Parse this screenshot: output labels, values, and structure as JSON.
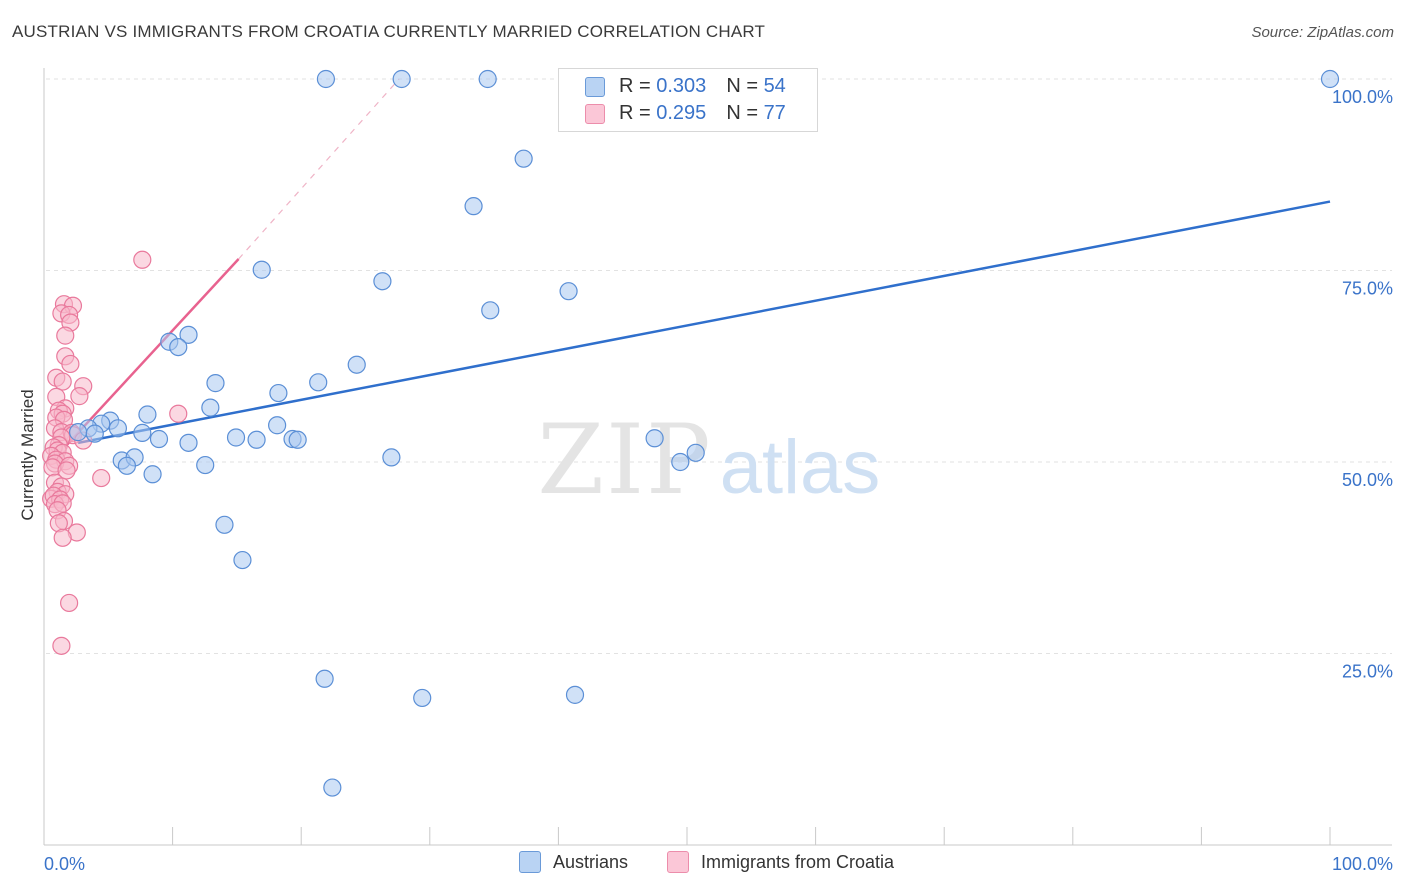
{
  "header": {
    "title": "AUSTRIAN VS IMMIGRANTS FROM CROATIA CURRENTLY MARRIED CORRELATION CHART",
    "source": "Source: ZipAtlas.com"
  },
  "legend": {
    "r_label": "R =",
    "n_label": "N =",
    "series": [
      {
        "name": "Austrians",
        "r": "0.303",
        "n": "54"
      },
      {
        "name": "Immigrants from Croatia",
        "r": "0.295",
        "n": "77"
      }
    ]
  },
  "watermark": {
    "part1": "ZIP",
    "part2": "atlas"
  },
  "colors": {
    "blue_fill": "#a9c8f0",
    "blue_stroke": "#5b8fd6",
    "blue_line": "#2f6fcc",
    "pink_fill": "#f7b8cb",
    "pink_stroke": "#e9799c",
    "pink_line": "#e8628f",
    "tick_label": "#3a73c9"
  },
  "chart_data": {
    "type": "scatter",
    "title": "AUSTRIAN VS IMMIGRANTS FROM CROATIA CURRENTLY MARRIED CORRELATION CHART",
    "xlabel": "",
    "ylabel": "Currently Married",
    "xlim": [
      0,
      100
    ],
    "ylim": [
      0,
      100
    ],
    "x_tick_labels": [
      "0.0%",
      "100.0%"
    ],
    "y_ticks": [
      25,
      50,
      75,
      100
    ],
    "y_tick_labels": [
      "25.0%",
      "50.0%",
      "75.0%",
      "100.0%"
    ],
    "grid": true,
    "series": [
      {
        "name": "Austrians",
        "r": 0.303,
        "n": 54,
        "trend": {
          "x0": 2.5,
          "y0": 52.5,
          "x1": 100,
          "y1": 84.0
        },
        "points": [
          [
            21.8,
            100
          ],
          [
            27.7,
            100
          ],
          [
            34.4,
            100
          ],
          [
            100,
            100
          ],
          [
            37.2,
            89.6
          ],
          [
            33.3,
            83.4
          ],
          [
            16.8,
            75.1
          ],
          [
            26.2,
            73.6
          ],
          [
            40.7,
            72.3
          ],
          [
            34.6,
            69.8
          ],
          [
            11.1,
            66.6
          ],
          [
            9.6,
            65.7
          ],
          [
            10.3,
            65
          ],
          [
            13.2,
            60.3
          ],
          [
            21.2,
            60.4
          ],
          [
            24.2,
            62.7
          ],
          [
            18.1,
            59
          ],
          [
            12.8,
            57.1
          ],
          [
            7.9,
            56.2
          ],
          [
            5.0,
            55.4
          ],
          [
            4.3,
            55
          ],
          [
            3.3,
            54.4
          ],
          [
            5.6,
            54.4
          ],
          [
            18.0,
            54.8
          ],
          [
            2.5,
            53.9
          ],
          [
            3.8,
            53.7
          ],
          [
            7.5,
            53.8
          ],
          [
            8.8,
            53
          ],
          [
            14.8,
            53.2
          ],
          [
            16.4,
            52.9
          ],
          [
            19.2,
            53
          ],
          [
            19.6,
            52.9
          ],
          [
            47.4,
            53.1
          ],
          [
            11.1,
            52.5
          ],
          [
            5.9,
            50.2
          ],
          [
            6.9,
            50.6
          ],
          [
            12.4,
            49.6
          ],
          [
            6.3,
            49.5
          ],
          [
            26.9,
            50.6
          ],
          [
            50.6,
            51.2
          ],
          [
            49.4,
            50
          ],
          [
            8.3,
            48.4
          ],
          [
            13.9,
            41.8
          ],
          [
            15.3,
            37.2
          ],
          [
            21.7,
            21.7
          ],
          [
            29.3,
            19.2
          ],
          [
            41.2,
            19.6
          ],
          [
            22.3,
            7.5
          ]
        ]
      },
      {
        "name": "Immigrants from Croatia",
        "r": 0.295,
        "n": 77,
        "trend": {
          "x0": 1.5,
          "y0": 52.0,
          "x1": 15.0,
          "y1": 76.5,
          "dash_x1": 27.5,
          "dash_y1": 100
        },
        "points": [
          [
            7.5,
            76.4
          ],
          [
            1.4,
            70.6
          ],
          [
            2.1,
            70.4
          ],
          [
            1.2,
            69.4
          ],
          [
            1.8,
            69.2
          ],
          [
            1.9,
            68.2
          ],
          [
            1.5,
            66.5
          ],
          [
            1.5,
            63.8
          ],
          [
            1.9,
            62.8
          ],
          [
            0.8,
            61
          ],
          [
            1.3,
            60.5
          ],
          [
            2.9,
            59.9
          ],
          [
            0.8,
            58.5
          ],
          [
            2.6,
            58.6
          ],
          [
            1.5,
            57
          ],
          [
            1.0,
            56.7
          ],
          [
            1.3,
            56.3
          ],
          [
            10.3,
            56.3
          ],
          [
            0.8,
            55.8
          ],
          [
            1.4,
            55.5
          ],
          [
            0.7,
            54.4
          ],
          [
            1.2,
            53.9
          ],
          [
            2.0,
            53.8
          ],
          [
            2.1,
            53.5
          ],
          [
            1.2,
            53.2
          ],
          [
            2.9,
            52.8
          ],
          [
            1.0,
            52.2
          ],
          [
            0.6,
            51.9
          ],
          [
            0.9,
            51.5
          ],
          [
            1.3,
            51.2
          ],
          [
            0.4,
            50.8
          ],
          [
            0.8,
            50.3
          ],
          [
            1.5,
            50.1
          ],
          [
            0.7,
            49.8
          ],
          [
            1.8,
            49.5
          ],
          [
            0.5,
            49.3
          ],
          [
            1.6,
            48.9
          ],
          [
            4.3,
            47.9
          ],
          [
            0.7,
            47.3
          ],
          [
            1.2,
            46.8
          ],
          [
            0.9,
            46.1
          ],
          [
            1.5,
            45.8
          ],
          [
            0.4,
            45.2
          ],
          [
            0.6,
            45.6
          ],
          [
            1.1,
            45.1
          ],
          [
            0.7,
            44.5
          ],
          [
            1.3,
            44.6
          ],
          [
            0.9,
            43.7
          ],
          [
            1.4,
            42.3
          ],
          [
            1.0,
            42.0
          ],
          [
            2.4,
            40.8
          ],
          [
            1.3,
            40.1
          ],
          [
            1.8,
            31.6
          ],
          [
            1.2,
            26.0
          ]
        ]
      }
    ]
  }
}
